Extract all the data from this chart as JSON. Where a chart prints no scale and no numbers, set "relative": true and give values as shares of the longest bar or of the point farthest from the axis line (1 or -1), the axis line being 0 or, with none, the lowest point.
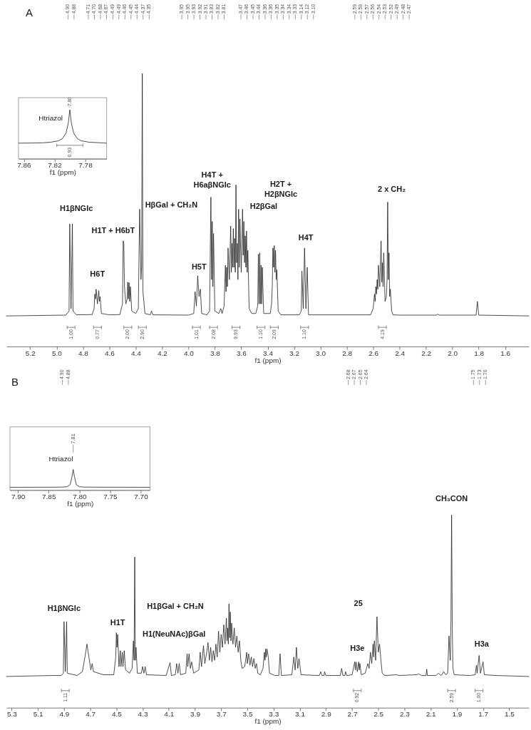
{
  "chart_data": [
    {
      "type": "line",
      "title": "A",
      "xlabel": "f1 (ppm)",
      "relative": true,
      "color": "#222222",
      "xlim": [
        5.38,
        1.42
      ],
      "xticks": [
        5.2,
        {
          "value": 5,
          "label": "5.0"
        },
        4.8,
        4.6,
        4.4,
        4.2,
        {
          "value": 4,
          "label": "4.0"
        },
        3.8,
        3.6,
        3.4,
        3.2,
        {
          "value": 3,
          "label": "3.0"
        },
        2.8,
        2.6,
        2.4,
        2.2,
        {
          "value": 2,
          "label": "2.0"
        },
        1.8,
        1.6
      ],
      "x": [
        5.38,
        4.93,
        4.905,
        4.9,
        4.89,
        4.88,
        4.875,
        4.85,
        4.73,
        4.715,
        4.71,
        4.705,
        4.7,
        4.69,
        4.68,
        4.675,
        4.67,
        4.66,
        4.6,
        4.52,
        4.5,
        4.495,
        4.49,
        4.485,
        4.475,
        4.465,
        4.46,
        4.455,
        4.45,
        4.445,
        4.44,
        4.43,
        4.4,
        4.38,
        4.37,
        4.36,
        4.355,
        4.35,
        4.345,
        4.33,
        4.29,
        4.28,
        4.27,
        4.0,
        3.96,
        3.95,
        3.94,
        3.93,
        3.92,
        3.91,
        3.9,
        3.86,
        3.84,
        3.83,
        3.825,
        3.82,
        3.815,
        3.81,
        3.8,
        3.77,
        3.755,
        3.745,
        3.73,
        3.72,
        3.715,
        3.71,
        3.705,
        3.7,
        3.69,
        3.68,
        3.675,
        3.67,
        3.665,
        3.66,
        3.655,
        3.65,
        3.645,
        3.64,
        3.635,
        3.63,
        3.625,
        3.62,
        3.615,
        3.61,
        3.6,
        3.59,
        3.585,
        3.58,
        3.575,
        3.57,
        3.565,
        3.56,
        3.555,
        3.55,
        3.54,
        3.52,
        3.49,
        3.475,
        3.47,
        3.465,
        3.46,
        3.455,
        3.45,
        3.445,
        3.44,
        3.43,
        3.38,
        3.37,
        3.365,
        3.36,
        3.355,
        3.35,
        3.345,
        3.34,
        3.335,
        3.33,
        3.32,
        3.3,
        3.16,
        3.145,
        3.14,
        3.13,
        3.12,
        3.11,
        3.1,
        3.09,
        2.62,
        2.6,
        2.59,
        2.585,
        2.58,
        2.575,
        2.57,
        2.565,
        2.56,
        2.55,
        2.54,
        2.535,
        2.53,
        2.525,
        2.52,
        2.51,
        2.5,
        2.495,
        2.49,
        2.485,
        2.48,
        2.475,
        2.47,
        2.46,
        2.45,
        2.4,
        2.12,
        2.11,
        2.1,
        1.82,
        1.81,
        1.8,
        1.42
      ],
      "values": [
        0.112,
        0.115,
        0.13,
        0.449,
        0.139,
        0.449,
        0.13,
        0.116,
        0.117,
        0.139,
        0.192,
        0.174,
        0.21,
        0.156,
        0.205,
        0.165,
        0.183,
        0.121,
        0.116,
        0.117,
        0.156,
        0.387,
        0.378,
        0.219,
        0.156,
        0.174,
        0.236,
        0.174,
        0.234,
        0.165,
        0.219,
        0.13,
        0.121,
        0.139,
        0.503,
        0.245,
        0.29,
        1,
        0.201,
        0.121,
        0.116,
        0.13,
        0.116,
        0.115,
        0.121,
        0.201,
        0.148,
        0.259,
        0.183,
        0.21,
        0.121,
        0.116,
        0.13,
        0.547,
        0.245,
        0.458,
        0.219,
        0.414,
        0.13,
        0.121,
        0.139,
        0.121,
        0.148,
        0.298,
        0.201,
        0.29,
        0.219,
        0.361,
        0.245,
        0.441,
        0.272,
        0.378,
        0.29,
        0.432,
        0.29,
        0.396,
        0.272,
        0.592,
        0.307,
        0.378,
        0.245,
        0.503,
        0.29,
        0.467,
        0.272,
        0.503,
        0.334,
        0.458,
        0.307,
        0.405,
        0.29,
        0.423,
        0.272,
        0.352,
        0.139,
        0.121,
        0.121,
        0.148,
        0.338,
        0.156,
        0.343,
        0.156,
        0.298,
        0.156,
        0.29,
        0.121,
        0.121,
        0.156,
        0.219,
        0.361,
        0.29,
        0.37,
        0.272,
        0.352,
        0.245,
        0.281,
        0.13,
        0.116,
        0.116,
        0.13,
        0.276,
        0.139,
        0.361,
        0.139,
        0.29,
        0.116,
        0.116,
        0.139,
        0.192,
        0.165,
        0.219,
        0.192,
        0.245,
        0.21,
        0.298,
        0.219,
        0.387,
        0.236,
        0.307,
        0.219,
        0.343,
        0.165,
        0.183,
        0.245,
        0.529,
        0.245,
        0.343,
        0.183,
        0.21,
        0.13,
        0.116,
        0.115,
        0.115,
        0.119,
        0.115,
        0.115,
        0.165,
        0.115,
        0.112
      ],
      "annotations": [
        "4.90",
        "4.88",
        "4.71",
        "4.70",
        "4.68",
        "4.67",
        "4.49",
        "4.49",
        "4.46",
        "4.45",
        "4.44",
        "4.37",
        "4.35",
        "3.95",
        "3.95",
        "3.93",
        "3.92",
        "3.91",
        "3.83",
        "3.82",
        "3.81",
        "3.47",
        "3.46",
        "3.45",
        "3.44",
        "3.36",
        "3.36",
        "3.35",
        "3.34",
        "3.34",
        "3.33",
        "3.14",
        "3.12",
        "3.10",
        "2.59",
        "2.58",
        "2.57",
        "2.56",
        "2.54",
        "2.53",
        "2.52",
        "2.49",
        "2.48",
        "2.47",
        "H1βNGlc",
        "H6T",
        "H1T + H6bT",
        "HβGal + CH₂N",
        "H4T +\nH6aβNGlc",
        "H5T",
        "H2βGal",
        "H2T +\nH2βNGlc",
        "H4T",
        "2 x CH₂",
        "1.00",
        "0.77",
        "2.00",
        "2.90",
        "1.01",
        "2.08",
        "9.93",
        "1.10",
        "2.09",
        "1.10",
        "4.19"
      ]
    },
    {
      "type": "line",
      "xlabel": "f1 (ppm)",
      "relative": true,
      "color": "#222222",
      "xlim": [
        7.867,
        7.752
      ],
      "xticks": [
        7.86,
        7.82,
        7.78
      ],
      "x": [
        7.867,
        7.85,
        7.835,
        7.825,
        7.815,
        7.81,
        7.805,
        7.802,
        7.8,
        7.798,
        7.795,
        7.79,
        7.785,
        7.775,
        7.76,
        7.752
      ],
      "values": [
        0.319,
        0.322,
        0.326,
        0.339,
        0.366,
        0.407,
        0.523,
        0.728,
        1,
        0.728,
        0.523,
        0.407,
        0.366,
        0.339,
        0.326,
        0.319
      ],
      "annotations": [
        "7.80",
        "Htriazol",
        "0.93"
      ]
    },
    {
      "type": "line",
      "xlabel": "f1 (ppm)",
      "relative": true,
      "color": "#222222",
      "xlim": [
        5.34,
        1.35
      ],
      "xticks": [
        5.3,
        5.1,
        4.9,
        4.7,
        4.5,
        4.3,
        4.1,
        3.9,
        3.7,
        3.5,
        3.3,
        3.1,
        2.9,
        2.7,
        2.5,
        2.3,
        2.1,
        1.9,
        1.7,
        1.5
      ],
      "x": [
        5.34,
        5.0,
        4.92,
        4.905,
        4.9,
        4.89,
        4.88,
        4.875,
        4.8,
        4.76,
        4.74,
        4.725,
        4.71,
        4.695,
        4.685,
        4.675,
        4.6,
        4.52,
        4.505,
        4.5,
        4.495,
        4.49,
        4.48,
        4.47,
        4.465,
        4.455,
        4.45,
        4.44,
        4.43,
        4.4,
        4.38,
        4.37,
        4.365,
        4.36,
        4.355,
        4.35,
        4.34,
        4.31,
        4.3,
        4.29,
        4.28,
        4.27,
        4.12,
        4.09,
        4.08,
        4.05,
        4.04,
        4.03,
        4.02,
        4.01,
        3.97,
        3.96,
        3.955,
        3.945,
        3.935,
        3.925,
        3.91,
        3.87,
        3.86,
        3.85,
        3.835,
        3.825,
        3.81,
        3.8,
        3.79,
        3.78,
        3.77,
        3.76,
        3.75,
        3.74,
        3.73,
        3.72,
        3.71,
        3.7,
        3.69,
        3.68,
        3.67,
        3.66,
        3.655,
        3.65,
        3.645,
        3.64,
        3.635,
        3.63,
        3.625,
        3.62,
        3.61,
        3.6,
        3.59,
        3.58,
        3.57,
        3.56,
        3.55,
        3.54,
        3.52,
        3.505,
        3.5,
        3.49,
        3.48,
        3.47,
        3.46,
        3.45,
        3.44,
        3.43,
        3.42,
        3.4,
        3.38,
        3.37,
        3.365,
        3.36,
        3.355,
        3.35,
        3.34,
        3.335,
        3.33,
        3.29,
        3.26,
        3.25,
        3.24,
        3.16,
        3.145,
        3.135,
        3.125,
        3.115,
        3.105,
        3.09,
        2.95,
        2.94,
        2.93,
        2.915,
        2.91,
        2.9,
        2.79,
        2.78,
        2.77,
        2.755,
        2.75,
        2.74,
        2.7,
        2.68,
        2.675,
        2.67,
        2.66,
        2.65,
        2.645,
        2.64,
        2.63,
        2.6,
        2.58,
        2.57,
        2.56,
        2.55,
        2.54,
        2.535,
        2.53,
        2.52,
        2.51,
        2.5,
        2.49,
        2.48,
        2.47,
        2.45,
        2.36,
        2.34,
        2.21,
        2.19,
        2.17,
        2.135,
        2.13,
        2.125,
        2.06,
        2.04,
        2.02,
        2.0,
        1.985,
        1.97,
        1.96,
        1.95,
        1.945,
        1.94,
        1.935,
        1.93,
        1.92,
        1.8,
        1.76,
        1.75,
        1.745,
        1.73,
        1.72,
        1.7,
        1.69,
        1.6,
        1.35
      ],
      "values": [
        0.162,
        0.167,
        0.167,
        0.179,
        0.447,
        0.187,
        0.447,
        0.179,
        0.167,
        0.187,
        0.263,
        0.33,
        0.263,
        0.196,
        0.229,
        0.187,
        0.171,
        0.171,
        0.263,
        0.389,
        0.313,
        0.38,
        0.213,
        0.296,
        0.213,
        0.288,
        0.213,
        0.296,
        0.196,
        0.179,
        0.204,
        0.347,
        0.246,
        0.782,
        0.246,
        0.313,
        0.179,
        0.179,
        0.213,
        0.179,
        0.213,
        0.171,
        0.167,
        0.234,
        0.167,
        0.171,
        0.229,
        0.179,
        0.229,
        0.171,
        0.179,
        0.28,
        0.213,
        0.28,
        0.204,
        0.238,
        0.179,
        0.196,
        0.288,
        0.213,
        0.322,
        0.229,
        0.288,
        0.338,
        0.246,
        0.313,
        0.238,
        0.296,
        0.246,
        0.33,
        0.263,
        0.397,
        0.288,
        0.38,
        0.313,
        0.43,
        0.33,
        0.464,
        0.347,
        0.414,
        0.33,
        0.539,
        0.363,
        0.497,
        0.347,
        0.439,
        0.33,
        0.414,
        0.313,
        0.372,
        0.288,
        0.347,
        0.246,
        0.204,
        0.213,
        0.288,
        0.229,
        0.28,
        0.221,
        0.263,
        0.213,
        0.255,
        0.204,
        0.229,
        0.179,
        0.171,
        0.204,
        0.288,
        0.246,
        0.305,
        0.263,
        0.305,
        0.263,
        0.213,
        0.179,
        0.167,
        0.167,
        0.28,
        0.167,
        0.171,
        0.263,
        0.196,
        0.313,
        0.204,
        0.255,
        0.171,
        0.167,
        0.187,
        0.167,
        0.167,
        0.187,
        0.167,
        0.167,
        0.204,
        0.167,
        0.167,
        0.187,
        0.167,
        0.171,
        0.238,
        0.196,
        0.238,
        0.187,
        0.238,
        0.196,
        0.229,
        0.171,
        0.179,
        0.229,
        0.204,
        0.288,
        0.229,
        0.33,
        0.263,
        0.347,
        0.246,
        0.472,
        0.288,
        0.33,
        0.246,
        0.179,
        0.167,
        0.171,
        0.167,
        0.171,
        0.175,
        0.167,
        0.167,
        0.2,
        0.167,
        0.167,
        0.179,
        0.167,
        0.187,
        0.171,
        0.179,
        0.372,
        0.246,
        0.456,
        1,
        0.414,
        0.204,
        0.171,
        0.167,
        0.171,
        0.221,
        0.179,
        0.271,
        0.179,
        0.238,
        0.171,
        0.167,
        0.162
      ],
      "annotations": [
        "4.90",
        "4.88",
        "2.68",
        "2.67",
        "2.65",
        "2.64",
        "1.75",
        "1.73",
        "1.70",
        "H1βNGlc",
        "H1T",
        "H1(NeuNAc)βGal",
        "H1βGal + CH₂N",
        "CH₃CON",
        "H3e",
        "H3a",
        "25",
        "1.11",
        "0.92",
        "2.59",
        "1.00"
      ]
    },
    {
      "type": "line",
      "title": "B",
      "xlabel": "f1 (ppm)",
      "relative": true,
      "color": "#222222",
      "xlim": [
        7.913,
        7.685
      ],
      "xticks": [
        {
          "value": 7.9,
          "label": "7.90"
        },
        7.85,
        {
          "value": 7.8,
          "label": "7.80"
        },
        7.75,
        {
          "value": 7.7,
          "label": "7.70"
        }
      ],
      "x": [
        7.913,
        7.85,
        7.83,
        7.82,
        7.815,
        7.812,
        7.81,
        7.808,
        7.805,
        7.8,
        7.79,
        7.75,
        7.685
      ],
      "values": [
        0.138,
        0.142,
        0.147,
        0.164,
        0.267,
        0.655,
        1,
        0.655,
        0.267,
        0.164,
        0.147,
        0.142,
        0.138
      ],
      "annotations": [
        "7.81",
        "Htriazol"
      ]
    }
  ]
}
